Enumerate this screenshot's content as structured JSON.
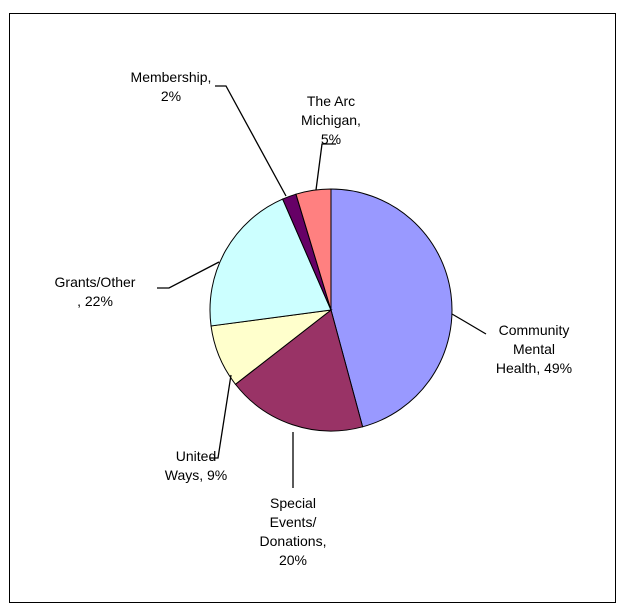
{
  "chart_data": {
    "type": "pie",
    "slices": [
      {
        "name": "Community Mental Health",
        "value": 49,
        "color": "#9999ff",
        "label_lines": [
          "Community",
          "Mental",
          "Health, 49%"
        ]
      },
      {
        "name": "Special Events/ Donations",
        "value": 20,
        "color": "#993366",
        "label_lines": [
          "Special",
          "Events/",
          "Donations,",
          "20%"
        ]
      },
      {
        "name": "United Ways",
        "value": 9,
        "color": "#ffffcc",
        "label_lines": [
          "United",
          "Ways, 9%"
        ]
      },
      {
        "name": "Grants/Other",
        "value": 22,
        "color": "#ccffff",
        "label_lines": [
          "Grants/Other",
          ", 22%"
        ]
      },
      {
        "name": "Membership",
        "value": 2,
        "color": "#660066",
        "label_lines": [
          "Membership,",
          "2%"
        ]
      },
      {
        "name": "The Arc Michigan",
        "value": 5,
        "color": "#ff8080",
        "label_lines": [
          "The Arc",
          "Michigan,",
          "5%"
        ]
      }
    ],
    "start": "12 o'clock",
    "direction": "clockwise",
    "legend": "none",
    "data_labels": "outside with leader lines"
  }
}
